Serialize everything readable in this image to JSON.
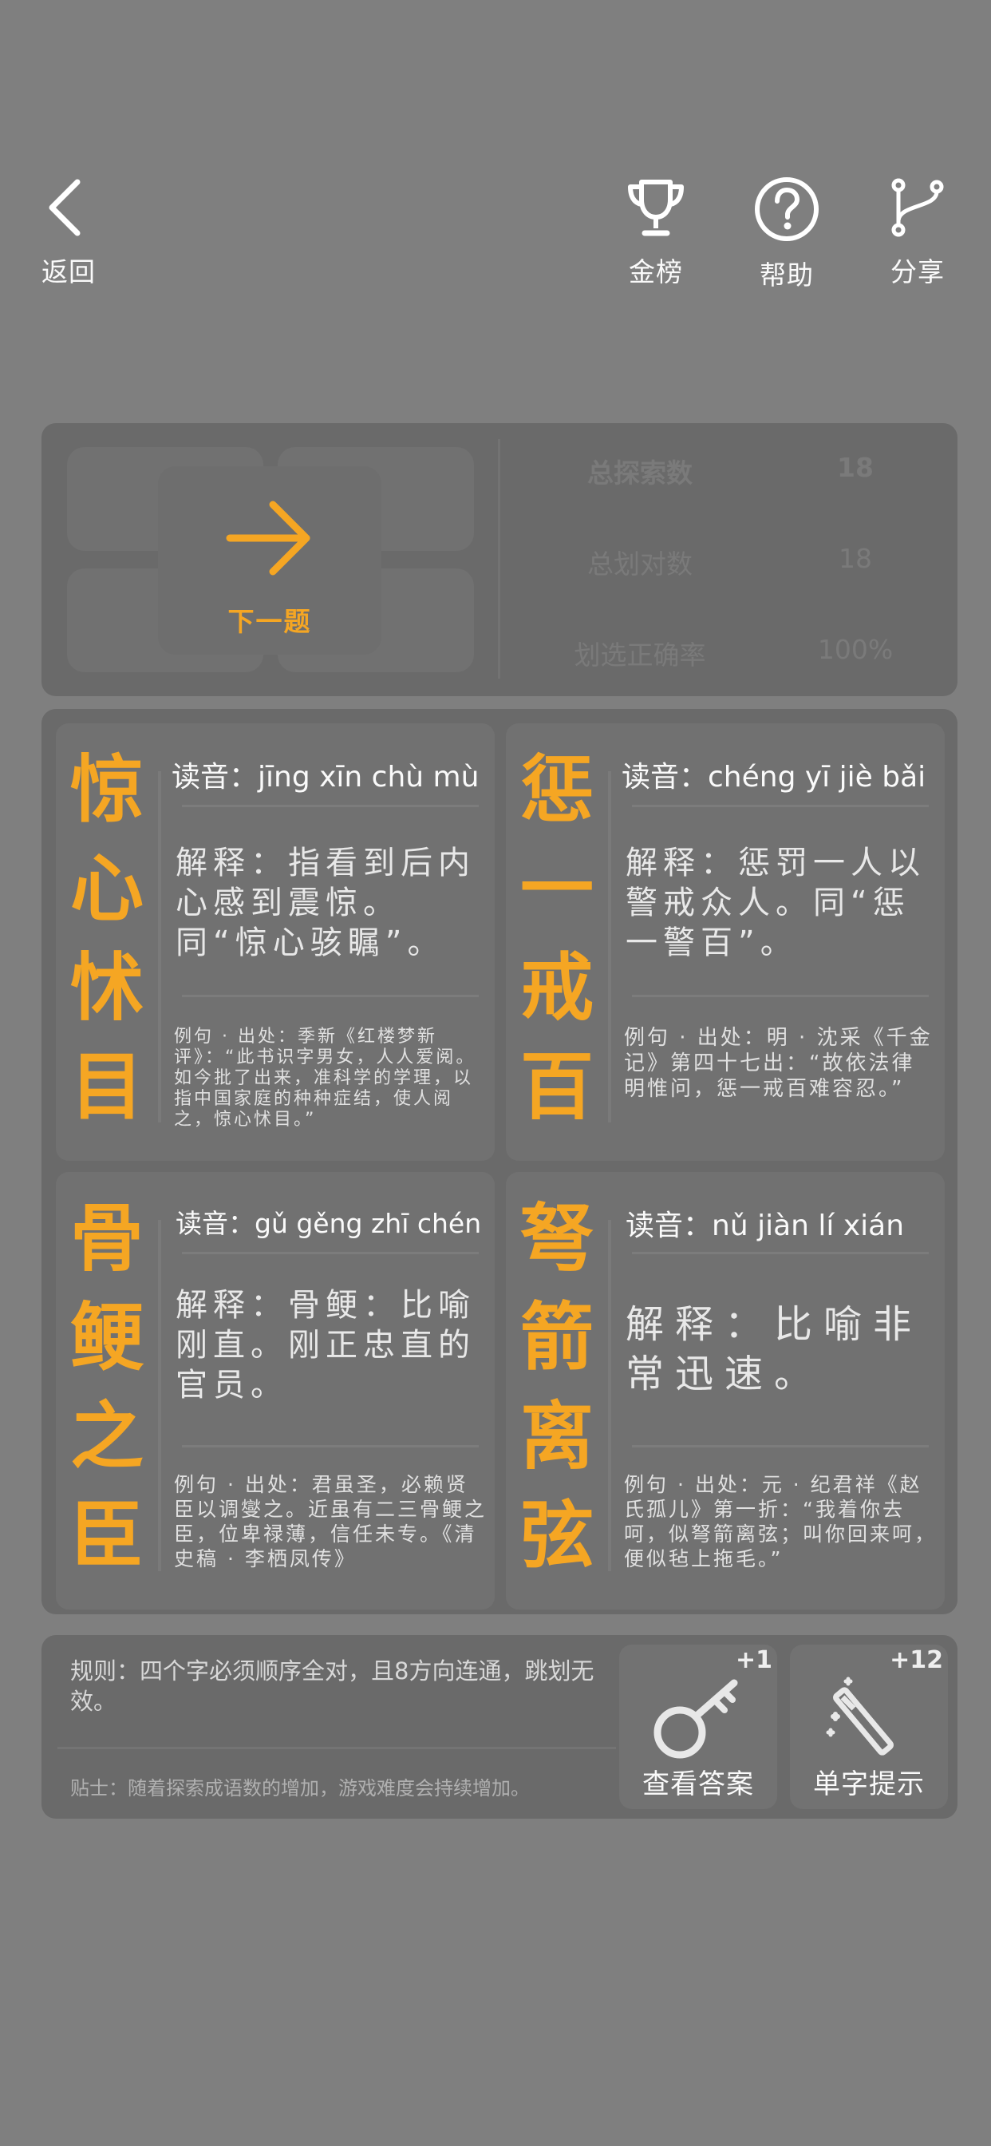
{
  "nav": {
    "back_label": "返回",
    "leaderboard_label": "金榜",
    "help_label": "帮助",
    "share_label": "分享"
  },
  "stats": {
    "next_label": "下一题",
    "rows": [
      {
        "label": "总探索数",
        "value": "18"
      },
      {
        "label": "总划对数",
        "value": "18"
      },
      {
        "label": "划选正确率",
        "value": "100%"
      }
    ]
  },
  "cards": [
    {
      "chars": [
        "惊",
        "心",
        "怵",
        "目"
      ],
      "pinyin": "读音：jīng xīn chù mù",
      "explain": "解释：指看到后内心感到震惊。同“惊心骇瞩”。",
      "example": "例句 · 出处：季新《红楼梦新评》：“此书识字男女，人人爱阅。如今批了出来，准科学的学理，以指中国家庭的种种症结，使人阅之，惊心怵目。”"
    },
    {
      "chars": [
        "惩",
        "一",
        "戒",
        "百"
      ],
      "pinyin": "读音：chéng yī jiè bǎi",
      "explain": "解释：惩罚一人以警戒众人。同“惩一警百”。",
      "example": "例句 · 出处：明 · 沈采《千金记》第四十七出：“故依法律明惟问，惩一戒百难容忍。”"
    },
    {
      "chars": [
        "骨",
        "鲠",
        "之",
        "臣"
      ],
      "pinyin": "读音：gǔ gěng zhī chén",
      "explain": "解释：骨鲠：比喻刚直。刚正忠直的官员。",
      "example": "例句 · 出处：君虽圣，必赖贤臣以调燮之。近虽有二三骨鲠之臣，位卑禄薄，信任未专。《清史稿 · 李栖凤传》"
    },
    {
      "chars": [
        "弩",
        "箭",
        "离",
        "弦"
      ],
      "pinyin": "读音：nǔ jiàn lí xián",
      "explain": "解释：比喻非常迅速。",
      "example": "例句 · 出处：元 · 纪君祥《赵氏孤儿》第一折：“我着你去呵，似弩箭离弦；叫你回来呵，便似毡上拖毛。”"
    }
  ],
  "bottom": {
    "rule": "规则：四个字必须顺序全对，且8方向连通，跳划无效。",
    "tip": "贴士：随着探索成语数的增加，游戏难度会持续增加。",
    "view_answer_label": "查看答案",
    "view_answer_badge": "+1",
    "single_hint_label": "单字提示",
    "single_hint_badge": "+12"
  },
  "colors": {
    "background": "#7f7f7f",
    "panel": "#6a6a6a",
    "accent": "#f5a623"
  }
}
